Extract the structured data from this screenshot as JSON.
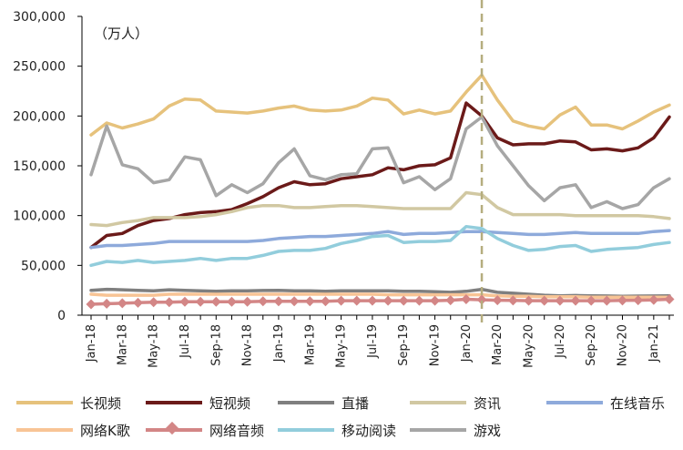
{
  "chart_data": {
    "type": "line",
    "unit_label": "（万人）",
    "ylim": [
      0,
      300000
    ],
    "yticks": [
      "0",
      "50,000",
      "100,000",
      "150,000",
      "200,000",
      "250,000",
      "300,000"
    ],
    "ytick_values": [
      0,
      50000,
      100000,
      150000,
      200000,
      250000,
      300000
    ],
    "x": [
      "Jan-18",
      "Feb-18",
      "Mar-18",
      "Apr-18",
      "May-18",
      "Jun-18",
      "Jul-18",
      "Aug-18",
      "Sep-18",
      "Oct-18",
      "Nov-18",
      "Dec-18",
      "Jan-19",
      "Feb-19",
      "Mar-19",
      "Apr-19",
      "May-19",
      "Jun-19",
      "Jul-19",
      "Aug-19",
      "Sep-19",
      "Oct-19",
      "Nov-19",
      "Dec-19",
      "Jan-20",
      "Feb-20",
      "Mar-20",
      "Apr-20",
      "May-20",
      "Jun-20",
      "Jul-20",
      "Aug-20",
      "Sep-20",
      "Oct-20",
      "Nov-20",
      "Dec-20",
      "Jan-21",
      "Feb-21"
    ],
    "x_tick_labels": [
      "Jan-18",
      "Mar-18",
      "May-18",
      "Jul-18",
      "Sep-18",
      "Nov-18",
      "Jan-19",
      "Mar-19",
      "May-19",
      "Jul-19",
      "Sep-19",
      "Nov-19",
      "Jan-20",
      "Mar-20",
      "May-20",
      "Jul-20",
      "Sep-20",
      "Nov-20",
      "Jan-21"
    ],
    "reference_line": {
      "x": "Feb-20",
      "style": "dashed",
      "color": "#b5ad7e"
    },
    "grid": false,
    "legend_placement": "bottom",
    "series": [
      {
        "name": "长视频",
        "color": "#e6c27c",
        "marker": "none",
        "values": [
          181000,
          193000,
          188000,
          192000,
          197000,
          210000,
          217000,
          216000,
          205000,
          204000,
          203000,
          205000,
          208000,
          210000,
          206000,
          205000,
          206000,
          210000,
          218000,
          216000,
          202000,
          206000,
          202000,
          205000,
          224000,
          241000,
          216000,
          195000,
          190000,
          187000,
          201000,
          209000,
          191000,
          191000,
          187000,
          195000,
          204000,
          211000
        ]
      },
      {
        "name": "短视频",
        "color": "#6b1a19",
        "marker": "none",
        "values": [
          68000,
          80000,
          82000,
          90000,
          95000,
          97000,
          101000,
          103000,
          104000,
          106000,
          112000,
          119000,
          128000,
          134000,
          131000,
          132000,
          137000,
          139000,
          141000,
          148000,
          146000,
          150000,
          151000,
          158000,
          213000,
          200000,
          178000,
          171000,
          172000,
          172000,
          175000,
          174000,
          166000,
          167000,
          165000,
          168000,
          178000,
          199000
        ]
      },
      {
        "name": "直播",
        "color": "#7f7f7f",
        "marker": "none",
        "values": [
          25000,
          26000,
          25500,
          25000,
          24500,
          25500,
          25000,
          24500,
          24000,
          24500,
          24500,
          24800,
          25000,
          24500,
          24500,
          24000,
          24500,
          24500,
          24500,
          24500,
          24000,
          24000,
          23500,
          23000,
          24000,
          26000,
          23000,
          22000,
          21000,
          20000,
          19500,
          19800,
          19500,
          19300,
          19000,
          19200,
          19300,
          19500
        ]
      },
      {
        "name": "资讯",
        "color": "#d1c8a2",
        "marker": "none",
        "values": [
          91000,
          90000,
          93000,
          95000,
          98000,
          98000,
          98000,
          99000,
          101000,
          104000,
          108000,
          110000,
          110000,
          108000,
          108000,
          109000,
          110000,
          110000,
          109000,
          108000,
          107000,
          107000,
          107000,
          107000,
          123000,
          121000,
          108000,
          101000,
          101000,
          101000,
          101000,
          100000,
          100000,
          100000,
          100000,
          100000,
          99000,
          97000
        ]
      },
      {
        "name": "在线音乐",
        "color": "#8eaadb",
        "marker": "none",
        "values": [
          68000,
          70000,
          70000,
          71000,
          72000,
          74000,
          74000,
          74000,
          74000,
          74000,
          74000,
          75000,
          77000,
          78000,
          79000,
          79000,
          80000,
          81000,
          82000,
          84000,
          81000,
          82000,
          82000,
          83000,
          84000,
          84000,
          83000,
          82000,
          81000,
          81000,
          82000,
          83000,
          82000,
          82000,
          82000,
          82000,
          84000,
          85000
        ]
      },
      {
        "name": "网络K歌",
        "color": "#f8c495",
        "marker": "none",
        "values": [
          21000,
          20000,
          20000,
          20000,
          20000,
          21000,
          21000,
          21000,
          21000,
          21000,
          21000,
          21000,
          21000,
          21000,
          21000,
          21000,
          21000,
          21000,
          21000,
          20500,
          20500,
          20500,
          20500,
          20500,
          20500,
          20500,
          19500,
          19000,
          19000,
          18500,
          18500,
          18500,
          18000,
          18000,
          18000,
          18000,
          18000,
          18000
        ]
      },
      {
        "name": "网络音频",
        "color": "#d38686",
        "marker": "diamond",
        "values": [
          11000,
          11500,
          12000,
          12500,
          13000,
          13000,
          13500,
          13500,
          13500,
          13500,
          13500,
          14000,
          14000,
          14000,
          14000,
          14000,
          14500,
          14500,
          14500,
          14500,
          14500,
          14500,
          14500,
          15000,
          16000,
          15500,
          15000,
          14800,
          14500,
          14500,
          14500,
          14500,
          14500,
          14500,
          14800,
          15000,
          15300,
          16000
        ]
      },
      {
        "name": "移动阅读",
        "color": "#92cddc",
        "marker": "none",
        "values": [
          50000,
          54000,
          53000,
          55000,
          53000,
          54000,
          55000,
          57000,
          55000,
          57000,
          57000,
          60000,
          64000,
          65000,
          65000,
          67000,
          72000,
          75000,
          79000,
          80000,
          73000,
          74000,
          74000,
          75000,
          89000,
          87000,
          77000,
          70000,
          65000,
          66000,
          69000,
          70000,
          64000,
          66000,
          67000,
          68000,
          71000,
          73000
        ]
      },
      {
        "name": "游戏",
        "color": "#a6a6a6",
        "marker": "none",
        "values": [
          141000,
          190000,
          151000,
          147000,
          133000,
          136000,
          159000,
          156000,
          120000,
          131000,
          123000,
          132000,
          153000,
          167000,
          140000,
          136000,
          141000,
          142000,
          167000,
          168000,
          133000,
          139000,
          126000,
          137000,
          187000,
          199000,
          170000,
          150000,
          130000,
          115000,
          128000,
          131000,
          108000,
          114000,
          107000,
          111000,
          128000,
          137000
        ]
      }
    ]
  }
}
